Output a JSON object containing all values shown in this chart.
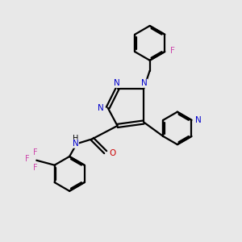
{
  "bg_color": "#e8e8e8",
  "bond_color": "#000000",
  "N_color": "#0000cc",
  "O_color": "#cc0000",
  "F_color": "#cc44aa",
  "line_width": 1.6,
  "xlim": [
    0,
    10
  ],
  "ylim": [
    0,
    10
  ]
}
